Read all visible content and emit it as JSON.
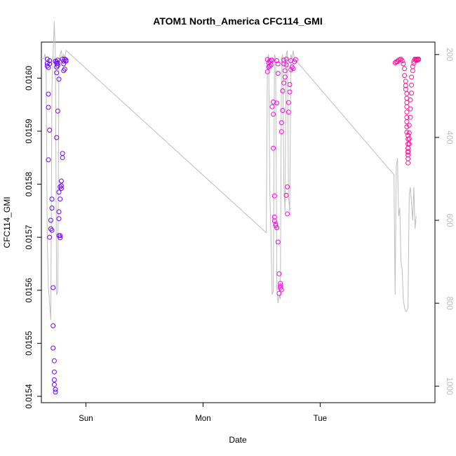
{
  "chart_data": {
    "type": "scatter",
    "title": "ATOM1 North_America CFC114_GMI",
    "xlabel": "Date",
    "ylabel": "CFC114_GMI",
    "x_ticks": [
      "Sun",
      "Mon",
      "Tue"
    ],
    "y_ticks": [
      "0.0154",
      "0.0155",
      "0.0156",
      "0.0157",
      "0.0158",
      "0.0159",
      "0.0160"
    ],
    "y_tick_values": [
      0.0154,
      0.0155,
      0.0156,
      0.0157,
      0.0158,
      0.0159,
      0.016
    ],
    "ylim": [
      0.015388,
      0.016068
    ],
    "y2_ticks": [
      "200",
      "400",
      "600",
      "800",
      "1000"
    ],
    "y2_tick_values": [
      200,
      400,
      600,
      800,
      1000
    ],
    "y2lim": [
      170,
      1040
    ],
    "y2_reversed": true,
    "xlim_days": [
      -0.38,
      2.98
    ],
    "x_tick_days": [
      0,
      1,
      2
    ],
    "colors": {
      "series_start": "#6a00ff",
      "series_mid": "#ff00ff",
      "series_end": "#ff1493",
      "secondary_line": "#bdbdbd"
    },
    "series": [
      {
        "x": [
          -0.33,
          -0.33,
          -0.33,
          -0.32,
          -0.32,
          -0.32,
          -0.32,
          -0.31,
          -0.31,
          -0.31,
          -0.31,
          -0.3,
          -0.3,
          -0.29,
          -0.29,
          -0.29,
          -0.28,
          -0.28,
          -0.28,
          -0.27,
          -0.27,
          -0.27,
          -0.27,
          -0.26,
          -0.26,
          -0.26,
          -0.25,
          -0.25,
          -0.25,
          -0.25,
          -0.24,
          -0.24,
          -0.24,
          -0.23,
          -0.23,
          -0.23,
          -0.23,
          -0.22,
          -0.22,
          -0.22,
          -0.22,
          -0.21,
          -0.21,
          -0.21,
          -0.2,
          -0.2,
          -0.2,
          -0.19,
          -0.19,
          -0.19,
          -0.18,
          -0.18,
          -0.17,
          -0.17,
          -0.25,
          -0.24,
          -0.23
        ],
        "y": [
          0.016036,
          0.016028,
          0.016023,
          0.01602,
          0.01597,
          0.015945,
          0.015846,
          0.0157,
          0.016033,
          0.016027,
          0.015902,
          0.015716,
          0.015732,
          0.015772,
          0.015755,
          0.015713,
          0.015605,
          0.015533,
          0.015491,
          0.015467,
          0.015446,
          0.015431,
          0.015422,
          0.015408,
          0.015413,
          0.016032,
          0.016028,
          0.016021,
          0.01601,
          0.015888,
          0.016034,
          0.016028,
          0.015938,
          0.015748,
          0.015785,
          0.015735,
          0.015703,
          0.015703,
          0.015699,
          0.015772,
          0.015795,
          0.015806,
          0.015797,
          0.015792,
          0.015858,
          0.01585,
          0.016036,
          0.016032,
          0.016027,
          0.016014,
          0.016017,
          0.016036,
          0.016034,
          0.016032,
          0.016031,
          0.016024,
          0.015998
        ]
      },
      {
        "x": [
          1.55,
          1.55,
          1.56,
          1.56,
          1.57,
          1.57,
          1.58,
          1.58,
          1.59,
          1.59,
          1.6,
          1.6,
          1.6,
          1.61,
          1.61,
          1.61,
          1.62,
          1.62,
          1.63,
          1.63,
          1.63,
          1.64,
          1.64,
          1.64,
          1.65,
          1.65,
          1.66,
          1.66,
          1.66,
          1.67,
          1.67,
          1.67,
          1.68,
          1.68,
          1.69,
          1.69,
          1.69,
          1.7,
          1.7,
          1.71,
          1.71,
          1.71,
          1.72,
          1.72,
          1.73,
          1.73,
          1.74,
          1.74,
          1.75,
          1.75,
          1.76,
          1.77,
          1.78,
          1.79
        ],
        "y": [
          0.016035,
          0.016012,
          0.016029,
          0.016021,
          0.016032,
          0.016023,
          0.016034,
          0.016025,
          0.016034,
          0.015946,
          0.015868,
          0.015955,
          0.015932,
          0.015778,
          0.015738,
          0.015731,
          0.015725,
          0.015722,
          0.015718,
          0.015953,
          0.016033,
          0.016027,
          0.016009,
          0.015691,
          0.015631,
          0.015594,
          0.015613,
          0.015608,
          0.015604,
          0.015601,
          0.015899,
          0.015916,
          0.015939,
          0.015976,
          0.015991,
          0.016034,
          0.016027,
          0.016014,
          0.016002,
          0.016036,
          0.016025,
          0.015779,
          0.015795,
          0.015744,
          0.015954,
          0.015936,
          0.015974,
          0.015988,
          0.016016,
          0.016033,
          0.016021,
          0.016018,
          0.016031,
          0.016035
        ]
      },
      {
        "x": [
          2.64,
          2.65,
          2.66,
          2.67,
          2.68,
          2.69,
          2.7,
          2.71,
          2.72,
          2.72,
          2.73,
          2.73,
          2.73,
          2.74,
          2.74,
          2.74,
          2.74,
          2.74,
          2.74,
          2.74,
          2.74,
          2.74,
          2.75,
          2.75,
          2.75,
          2.75,
          2.75,
          2.75,
          2.75,
          2.75,
          2.75,
          2.75,
          2.76,
          2.76,
          2.76,
          2.76,
          2.77,
          2.77,
          2.77,
          2.78,
          2.78,
          2.78,
          2.79,
          2.79,
          2.8,
          2.8,
          2.81,
          2.81,
          2.82,
          2.82,
          2.83,
          2.83,
          2.84,
          2.84
        ],
        "y": [
          0.016029,
          0.016031,
          0.016031,
          0.016034,
          0.016035,
          0.016036,
          0.016033,
          0.016027,
          0.016018,
          0.016005,
          0.015994,
          0.015986,
          0.015979,
          0.015971,
          0.015962,
          0.015954,
          0.015946,
          0.015936,
          0.015926,
          0.015918,
          0.015908,
          0.015898,
          0.015892,
          0.015885,
          0.015876,
          0.015868,
          0.015862,
          0.015855,
          0.015848,
          0.01584,
          0.01586,
          0.015868,
          0.015876,
          0.015886,
          0.015897,
          0.015911,
          0.015926,
          0.015942,
          0.015959,
          0.015972,
          0.015987,
          0.016002,
          0.016014,
          0.016022,
          0.016028,
          0.016032,
          0.016035,
          0.016036,
          0.016035,
          0.016034,
          0.016036,
          0.016034,
          0.016035,
          0.016036
        ]
      }
    ],
    "secondary_line": {
      "x": [
        -0.38,
        -0.36,
        -0.35,
        -0.34,
        -0.33,
        -0.32,
        -0.31,
        -0.3,
        -0.29,
        -0.28,
        -0.27,
        -0.26,
        -0.25,
        -0.24,
        -0.23,
        -0.22,
        -0.21,
        -0.2,
        -0.19,
        -0.18,
        -0.17,
        1.54,
        1.55,
        1.56,
        1.57,
        1.58,
        1.59,
        1.6,
        1.61,
        1.62,
        1.63,
        1.64,
        1.65,
        1.66,
        1.67,
        1.68,
        1.69,
        1.7,
        1.71,
        1.72,
        1.73,
        1.74,
        1.75,
        1.76,
        1.77,
        1.78,
        2.63,
        2.64,
        2.65,
        2.66,
        2.67,
        2.68,
        2.69,
        2.7,
        2.71,
        2.72,
        2.73,
        2.74,
        2.75,
        2.76,
        2.77,
        2.78,
        2.79,
        2.8,
        2.81,
        2.82
      ],
      "y": [
        210,
        210,
        200,
        210,
        640,
        760,
        800,
        840,
        280,
        200,
        120,
        210,
        780,
        770,
        220,
        200,
        190,
        210,
        200,
        210,
        190,
        630,
        210,
        200,
        530,
        640,
        780,
        770,
        200,
        210,
        760,
        800,
        780,
        790,
        210,
        200,
        510,
        580,
        200,
        190,
        540,
        580,
        200,
        210,
        190,
        210,
        490,
        780,
        470,
        450,
        590,
        570,
        700,
        720,
        790,
        810,
        820,
        820,
        810,
        540,
        520,
        560,
        600,
        520,
        620,
        590
      ]
    }
  }
}
